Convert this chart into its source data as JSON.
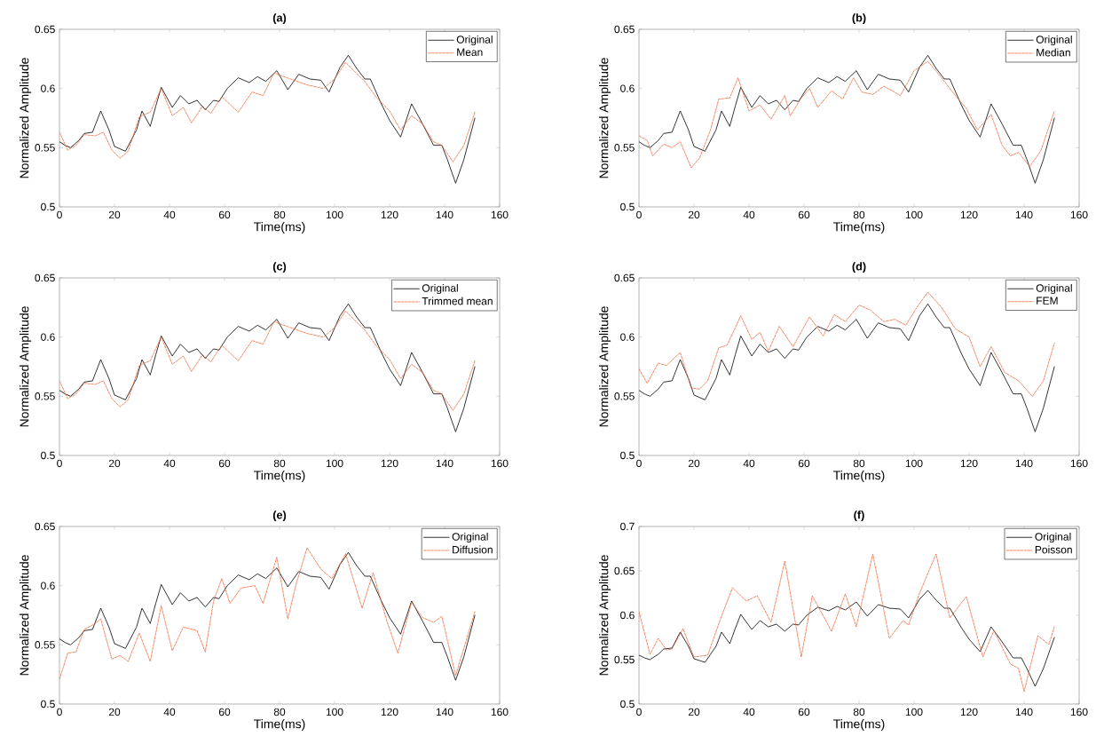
{
  "chart_data": [
    {
      "type": "line",
      "title": "(a)",
      "xlabel": "Time(ms)",
      "ylabel": "Normalized Amplitude",
      "xlim": [
        0,
        160
      ],
      "ylim": [
        0.5,
        0.65
      ],
      "xticks": [
        0,
        20,
        40,
        60,
        80,
        100,
        120,
        140,
        160
      ],
      "yticks": [
        0.5,
        0.55,
        0.6,
        0.65
      ],
      "legend": "top right",
      "series": [
        {
          "name": "Original",
          "color": "#000000",
          "line_style": "solid",
          "x": [
            0,
            2,
            4,
            7,
            9,
            12,
            15,
            18,
            20,
            24,
            28,
            30,
            33,
            35,
            37,
            41,
            44,
            47,
            50,
            53,
            56,
            58,
            61,
            65,
            69,
            72,
            75,
            79,
            83,
            87,
            91,
            95,
            98,
            102,
            105,
            108,
            111,
            113,
            117,
            120,
            124,
            128,
            132,
            136,
            139,
            141,
            144,
            147,
            151
          ],
          "values": [
            0.555,
            0.552,
            0.55,
            0.556,
            0.562,
            0.563,
            0.581,
            0.565,
            0.551,
            0.547,
            0.565,
            0.581,
            0.568,
            0.585,
            0.601,
            0.584,
            0.594,
            0.587,
            0.59,
            0.582,
            0.59,
            0.589,
            0.6,
            0.609,
            0.605,
            0.61,
            0.606,
            0.615,
            0.599,
            0.612,
            0.608,
            0.607,
            0.597,
            0.618,
            0.628,
            0.617,
            0.608,
            0.608,
            0.587,
            0.573,
            0.559,
            0.587,
            0.57,
            0.552,
            0.552,
            0.54,
            0.52,
            0.54,
            0.575
          ]
        },
        {
          "name": "Mean",
          "color": "#ee6a3c",
          "line_style": "dashed",
          "x": [
            0,
            3,
            6,
            9,
            13,
            16,
            19,
            22,
            25,
            29,
            33,
            37,
            41,
            45,
            48,
            52,
            55,
            59,
            65,
            70,
            74,
            78,
            84,
            90,
            96,
            100,
            104,
            107,
            111,
            115,
            120,
            124,
            128,
            132,
            136,
            139,
            143,
            147,
            151
          ],
          "values": [
            0.563,
            0.548,
            0.552,
            0.561,
            0.56,
            0.563,
            0.548,
            0.541,
            0.547,
            0.576,
            0.58,
            0.6,
            0.577,
            0.584,
            0.571,
            0.585,
            0.579,
            0.593,
            0.58,
            0.597,
            0.594,
            0.613,
            0.608,
            0.603,
            0.6,
            0.608,
            0.622,
            0.615,
            0.606,
            0.593,
            0.581,
            0.565,
            0.577,
            0.57,
            0.555,
            0.552,
            0.538,
            0.552,
            0.58
          ]
        }
      ]
    },
    {
      "type": "line",
      "title": "(b)",
      "xlabel": "Time(ms)",
      "ylabel": "Normalized Amplitude",
      "xlim": [
        0,
        160
      ],
      "ylim": [
        0.5,
        0.65
      ],
      "xticks": [
        0,
        20,
        40,
        60,
        80,
        100,
        120,
        140,
        160
      ],
      "yticks": [
        0.5,
        0.55,
        0.6,
        0.65
      ],
      "legend": "top right",
      "series": [
        {
          "name": "Original",
          "color": "#000000",
          "line_style": "solid",
          "x": [
            0,
            2,
            4,
            7,
            9,
            12,
            15,
            18,
            20,
            24,
            28,
            30,
            33,
            35,
            37,
            41,
            44,
            47,
            50,
            53,
            56,
            58,
            61,
            65,
            69,
            72,
            75,
            79,
            83,
            87,
            91,
            95,
            98,
            102,
            105,
            108,
            111,
            113,
            117,
            120,
            124,
            128,
            132,
            136,
            139,
            141,
            144,
            147,
            151
          ],
          "values": [
            0.555,
            0.552,
            0.55,
            0.556,
            0.562,
            0.563,
            0.581,
            0.565,
            0.551,
            0.547,
            0.565,
            0.581,
            0.568,
            0.585,
            0.601,
            0.584,
            0.594,
            0.587,
            0.59,
            0.582,
            0.59,
            0.589,
            0.6,
            0.609,
            0.605,
            0.61,
            0.606,
            0.615,
            0.599,
            0.612,
            0.608,
            0.607,
            0.597,
            0.618,
            0.628,
            0.617,
            0.608,
            0.608,
            0.587,
            0.573,
            0.559,
            0.587,
            0.57,
            0.552,
            0.552,
            0.54,
            0.52,
            0.54,
            0.575
          ]
        },
        {
          "name": "Median",
          "color": "#ee6a3c",
          "line_style": "dashed",
          "x": [
            0,
            3,
            5,
            9,
            12,
            15,
            19,
            22,
            26,
            29,
            33,
            36,
            40,
            44,
            48,
            53,
            55,
            59,
            62,
            65,
            70,
            74,
            78,
            81,
            85,
            89,
            95,
            100,
            105,
            110,
            115,
            119,
            123,
            128,
            132,
            135,
            138,
            142,
            146,
            151
          ],
          "values": [
            0.56,
            0.556,
            0.543,
            0.553,
            0.55,
            0.555,
            0.533,
            0.541,
            0.565,
            0.591,
            0.592,
            0.609,
            0.581,
            0.586,
            0.574,
            0.594,
            0.577,
            0.592,
            0.6,
            0.584,
            0.598,
            0.591,
            0.609,
            0.597,
            0.595,
            0.602,
            0.594,
            0.615,
            0.623,
            0.609,
            0.594,
            0.583,
            0.565,
            0.578,
            0.552,
            0.543,
            0.546,
            0.534,
            0.547,
            0.581
          ]
        }
      ]
    },
    {
      "type": "line",
      "title": "(c)",
      "xlabel": "Time(ms)",
      "ylabel": "Normalized Amplitude",
      "xlim": [
        0,
        160
      ],
      "ylim": [
        0.5,
        0.65
      ],
      "xticks": [
        0,
        20,
        40,
        60,
        80,
        100,
        120,
        140,
        160
      ],
      "yticks": [
        0.5,
        0.55,
        0.6,
        0.65
      ],
      "legend": "top right",
      "series": [
        {
          "name": "Original",
          "color": "#000000",
          "line_style": "solid",
          "x": [
            0,
            2,
            4,
            7,
            9,
            12,
            15,
            18,
            20,
            24,
            28,
            30,
            33,
            35,
            37,
            41,
            44,
            47,
            50,
            53,
            56,
            58,
            61,
            65,
            69,
            72,
            75,
            79,
            83,
            87,
            91,
            95,
            98,
            102,
            105,
            108,
            111,
            113,
            117,
            120,
            124,
            128,
            132,
            136,
            139,
            141,
            144,
            147,
            151
          ],
          "values": [
            0.555,
            0.552,
            0.55,
            0.556,
            0.562,
            0.563,
            0.581,
            0.565,
            0.551,
            0.547,
            0.565,
            0.581,
            0.568,
            0.585,
            0.601,
            0.584,
            0.594,
            0.587,
            0.59,
            0.582,
            0.59,
            0.589,
            0.6,
            0.609,
            0.605,
            0.61,
            0.606,
            0.615,
            0.599,
            0.612,
            0.608,
            0.607,
            0.597,
            0.618,
            0.628,
            0.617,
            0.608,
            0.608,
            0.587,
            0.573,
            0.559,
            0.587,
            0.57,
            0.552,
            0.552,
            0.54,
            0.52,
            0.54,
            0.575
          ]
        },
        {
          "name": "Trimmed mean",
          "color": "#ee6a3c",
          "line_style": "dashed",
          "x": [
            0,
            3,
            6,
            9,
            13,
            16,
            19,
            22,
            25,
            29,
            33,
            37,
            41,
            45,
            48,
            52,
            55,
            59,
            65,
            70,
            74,
            78,
            84,
            90,
            96,
            100,
            104,
            107,
            111,
            115,
            120,
            124,
            128,
            132,
            136,
            139,
            143,
            147,
            151
          ],
          "values": [
            0.563,
            0.548,
            0.552,
            0.561,
            0.56,
            0.563,
            0.548,
            0.541,
            0.547,
            0.576,
            0.58,
            0.6,
            0.577,
            0.584,
            0.571,
            0.585,
            0.579,
            0.593,
            0.58,
            0.597,
            0.594,
            0.613,
            0.608,
            0.603,
            0.6,
            0.608,
            0.622,
            0.615,
            0.606,
            0.593,
            0.581,
            0.565,
            0.577,
            0.57,
            0.555,
            0.552,
            0.538,
            0.552,
            0.58
          ]
        }
      ]
    },
    {
      "type": "line",
      "title": "(d)",
      "xlabel": "Time(ms)",
      "ylabel": "Normalized Amplitude",
      "xlim": [
        0,
        160
      ],
      "ylim": [
        0.5,
        0.65
      ],
      "xticks": [
        0,
        20,
        40,
        60,
        80,
        100,
        120,
        140,
        160
      ],
      "yticks": [
        0.5,
        0.55,
        0.6,
        0.65
      ],
      "legend": "top right",
      "series": [
        {
          "name": "Original",
          "color": "#000000",
          "line_style": "solid",
          "x": [
            0,
            2,
            4,
            7,
            9,
            12,
            15,
            18,
            20,
            24,
            28,
            30,
            33,
            35,
            37,
            41,
            44,
            47,
            50,
            53,
            56,
            58,
            61,
            65,
            69,
            72,
            75,
            79,
            83,
            87,
            91,
            95,
            98,
            102,
            105,
            108,
            111,
            113,
            117,
            120,
            124,
            128,
            132,
            136,
            139,
            141,
            144,
            147,
            151
          ],
          "values": [
            0.555,
            0.552,
            0.55,
            0.556,
            0.562,
            0.563,
            0.581,
            0.565,
            0.551,
            0.547,
            0.565,
            0.581,
            0.568,
            0.585,
            0.601,
            0.584,
            0.594,
            0.587,
            0.59,
            0.582,
            0.59,
            0.589,
            0.6,
            0.609,
            0.605,
            0.61,
            0.606,
            0.615,
            0.599,
            0.612,
            0.608,
            0.607,
            0.597,
            0.618,
            0.628,
            0.617,
            0.608,
            0.608,
            0.587,
            0.573,
            0.559,
            0.587,
            0.57,
            0.552,
            0.552,
            0.54,
            0.52,
            0.54,
            0.575
          ]
        },
        {
          "name": "FEM",
          "color": "#ee6a3c",
          "line_style": "dashed",
          "x": [
            0,
            3,
            7,
            10,
            15,
            19,
            22,
            25,
            29,
            32,
            37,
            41,
            44,
            47,
            51,
            56,
            62,
            67,
            71,
            75,
            80,
            84,
            89,
            93,
            97,
            101,
            105,
            110,
            115,
            120,
            124,
            128,
            133,
            138,
            143,
            147,
            151
          ],
          "values": [
            0.573,
            0.561,
            0.578,
            0.576,
            0.587,
            0.557,
            0.556,
            0.563,
            0.591,
            0.593,
            0.618,
            0.598,
            0.604,
            0.588,
            0.609,
            0.592,
            0.617,
            0.601,
            0.619,
            0.613,
            0.627,
            0.623,
            0.613,
            0.615,
            0.61,
            0.625,
            0.638,
            0.625,
            0.607,
            0.6,
            0.575,
            0.592,
            0.57,
            0.563,
            0.55,
            0.563,
            0.595
          ]
        }
      ]
    },
    {
      "type": "line",
      "title": "(e)",
      "xlabel": "Time(ms)",
      "ylabel": "Normalized Amplitude",
      "xlim": [
        0,
        160
      ],
      "ylim": [
        0.5,
        0.65
      ],
      "xticks": [
        0,
        20,
        40,
        60,
        80,
        100,
        120,
        140,
        160
      ],
      "yticks": [
        0.5,
        0.55,
        0.6,
        0.65
      ],
      "legend": "top right",
      "series": [
        {
          "name": "Original",
          "color": "#000000",
          "line_style": "solid",
          "x": [
            0,
            2,
            4,
            7,
            9,
            12,
            15,
            18,
            20,
            24,
            28,
            30,
            33,
            35,
            37,
            41,
            44,
            47,
            50,
            53,
            56,
            58,
            61,
            65,
            69,
            72,
            75,
            79,
            83,
            87,
            91,
            95,
            98,
            102,
            105,
            108,
            111,
            113,
            117,
            120,
            124,
            128,
            132,
            136,
            139,
            141,
            144,
            147,
            151
          ],
          "values": [
            0.555,
            0.552,
            0.55,
            0.556,
            0.562,
            0.563,
            0.581,
            0.565,
            0.551,
            0.547,
            0.565,
            0.581,
            0.568,
            0.585,
            0.601,
            0.584,
            0.594,
            0.587,
            0.59,
            0.582,
            0.59,
            0.589,
            0.6,
            0.609,
            0.605,
            0.61,
            0.606,
            0.615,
            0.599,
            0.612,
            0.608,
            0.607,
            0.597,
            0.618,
            0.628,
            0.617,
            0.608,
            0.608,
            0.587,
            0.573,
            0.559,
            0.587,
            0.57,
            0.552,
            0.552,
            0.54,
            0.52,
            0.54,
            0.575
          ]
        },
        {
          "name": "Diffusion",
          "color": "#ee6a3c",
          "line_style": "dashed",
          "x": [
            0,
            3,
            6,
            9,
            13,
            15,
            19,
            22,
            25,
            29,
            33,
            37,
            41,
            45,
            50,
            53,
            56,
            59,
            62,
            66,
            71,
            74,
            79,
            83,
            86,
            90,
            95,
            99,
            104,
            110,
            114,
            119,
            123,
            128,
            132,
            136,
            139,
            144,
            151
          ],
          "values": [
            0.521,
            0.543,
            0.544,
            0.563,
            0.568,
            0.572,
            0.538,
            0.541,
            0.536,
            0.56,
            0.536,
            0.583,
            0.545,
            0.565,
            0.562,
            0.544,
            0.587,
            0.606,
            0.585,
            0.598,
            0.6,
            0.585,
            0.624,
            0.572,
            0.601,
            0.632,
            0.614,
            0.606,
            0.627,
            0.581,
            0.611,
            0.57,
            0.543,
            0.586,
            0.573,
            0.569,
            0.574,
            0.524,
            0.578
          ]
        }
      ]
    },
    {
      "type": "line",
      "title": "(f)",
      "xlabel": "Time(ms)",
      "ylabel": "Normalized Amplitude",
      "xlim": [
        0,
        160
      ],
      "ylim": [
        0.5,
        0.7
      ],
      "xticks": [
        0,
        20,
        40,
        60,
        80,
        100,
        120,
        140,
        160
      ],
      "yticks": [
        0.5,
        0.55,
        0.6,
        0.65,
        0.7
      ],
      "legend": "top right",
      "series": [
        {
          "name": "Original",
          "color": "#000000",
          "line_style": "solid",
          "x": [
            0,
            2,
            4,
            7,
            9,
            12,
            15,
            18,
            20,
            24,
            28,
            30,
            33,
            35,
            37,
            41,
            44,
            47,
            50,
            53,
            56,
            58,
            61,
            65,
            69,
            72,
            75,
            79,
            83,
            87,
            91,
            95,
            98,
            102,
            105,
            108,
            111,
            113,
            117,
            120,
            124,
            128,
            132,
            136,
            139,
            141,
            144,
            147,
            151
          ],
          "values": [
            0.555,
            0.552,
            0.55,
            0.556,
            0.562,
            0.563,
            0.581,
            0.565,
            0.551,
            0.547,
            0.565,
            0.581,
            0.568,
            0.585,
            0.601,
            0.584,
            0.594,
            0.587,
            0.59,
            0.582,
            0.59,
            0.589,
            0.6,
            0.609,
            0.605,
            0.61,
            0.606,
            0.615,
            0.599,
            0.612,
            0.608,
            0.607,
            0.597,
            0.618,
            0.628,
            0.617,
            0.608,
            0.608,
            0.587,
            0.573,
            0.559,
            0.587,
            0.57,
            0.552,
            0.552,
            0.54,
            0.52,
            0.54,
            0.575
          ]
        },
        {
          "name": "Poisson",
          "color": "#ee6a3c",
          "line_style": "dashed",
          "x": [
            0,
            4,
            7,
            10,
            12,
            16,
            20,
            25,
            30,
            34,
            39,
            43,
            48,
            53,
            59,
            63,
            70,
            75,
            79,
            85,
            91,
            96,
            98,
            102,
            108,
            113,
            119,
            125,
            129,
            135,
            138,
            140,
            145,
            149,
            151
          ],
          "values": [
            0.604,
            0.556,
            0.574,
            0.561,
            0.562,
            0.585,
            0.553,
            0.555,
            0.599,
            0.631,
            0.616,
            0.622,
            0.592,
            0.661,
            0.553,
            0.622,
            0.582,
            0.624,
            0.587,
            0.669,
            0.574,
            0.594,
            0.589,
            0.625,
            0.669,
            0.597,
            0.621,
            0.553,
            0.583,
            0.545,
            0.54,
            0.514,
            0.577,
            0.567,
            0.587
          ]
        }
      ]
    }
  ]
}
